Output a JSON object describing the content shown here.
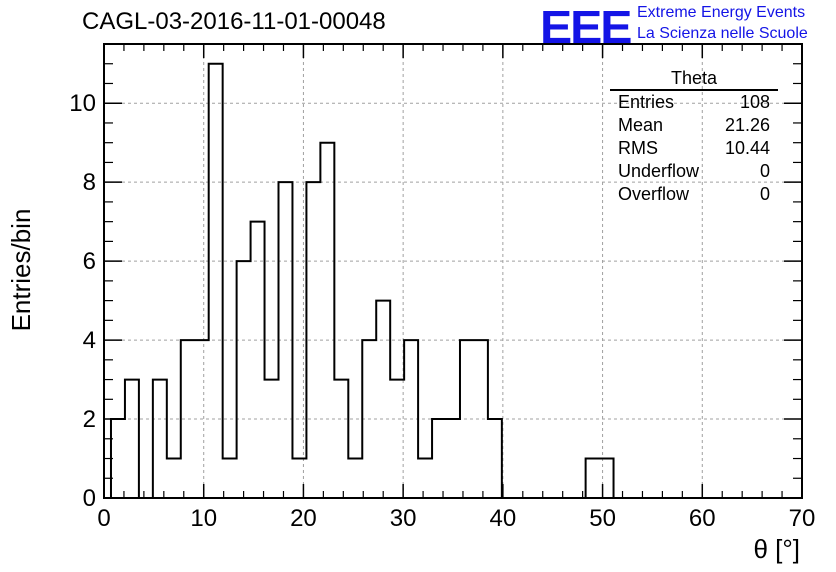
{
  "header": {
    "title": "CAGL-03-2016-11-01-00048",
    "logo_text": "EEE",
    "logo_line1": "Extreme Energy Events",
    "logo_line2": "La Scienza nelle Scuole"
  },
  "stats_box": {
    "title": "Theta",
    "rows": [
      {
        "label": "Entries",
        "value": "108"
      },
      {
        "label": "Mean",
        "value": "21.26"
      },
      {
        "label": "RMS",
        "value": "10.44"
      },
      {
        "label": "Underflow",
        "value": "0"
      },
      {
        "label": "Overflow",
        "value": "0"
      }
    ]
  },
  "colors": {
    "logo": "#1414e6",
    "line": "#000000",
    "grid": "#a0a0a0"
  },
  "chart_data": {
    "type": "bar",
    "style": "step-histogram",
    "title": "CAGL-03-2016-11-01-00048",
    "xlabel": "θ [°]",
    "ylabel": "Entries/bin",
    "xlim": [
      0,
      70
    ],
    "ylim": [
      0,
      11.5
    ],
    "grid": true,
    "x_ticks": [
      0,
      10,
      20,
      30,
      40,
      50,
      60,
      70
    ],
    "y_ticks": [
      0,
      2,
      4,
      6,
      8,
      10
    ],
    "bin_width": 1.4,
    "bin_start": 0.7,
    "values": [
      2,
      3,
      0,
      3,
      1,
      4,
      4,
      11,
      1,
      6,
      7,
      3,
      8,
      1,
      8,
      9,
      3,
      1,
      4,
      5,
      3,
      4,
      1,
      2,
      2,
      4,
      4,
      2,
      0,
      0,
      0,
      0,
      0,
      0,
      1,
      1
    ]
  }
}
